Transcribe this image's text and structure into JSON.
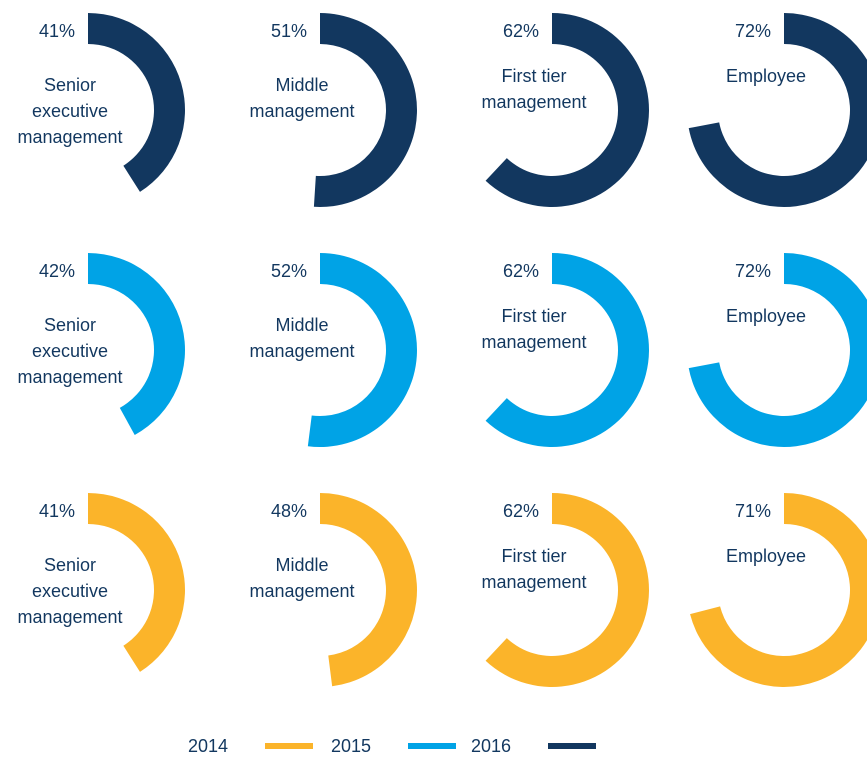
{
  "chart_data": {
    "type": "donut",
    "categories": [
      "Senior executive management",
      "Middle management",
      "First tier management",
      "Employee"
    ],
    "series": [
      {
        "name": "2016",
        "color": "#12375f",
        "values": [
          41,
          51,
          62,
          72
        ],
        "value_labels": [
          "41%",
          "51%",
          "62%",
          "72%"
        ]
      },
      {
        "name": "2015",
        "color": "#00a3e6",
        "values": [
          42,
          52,
          62,
          72
        ],
        "value_labels": [
          "42%",
          "52%",
          "62%",
          "72%"
        ]
      },
      {
        "name": "2014",
        "color": "#fbb42a",
        "values": [
          41,
          48,
          62,
          71
        ],
        "value_labels": [
          "41%",
          "48%",
          "62%",
          "71%"
        ]
      }
    ]
  }
}
